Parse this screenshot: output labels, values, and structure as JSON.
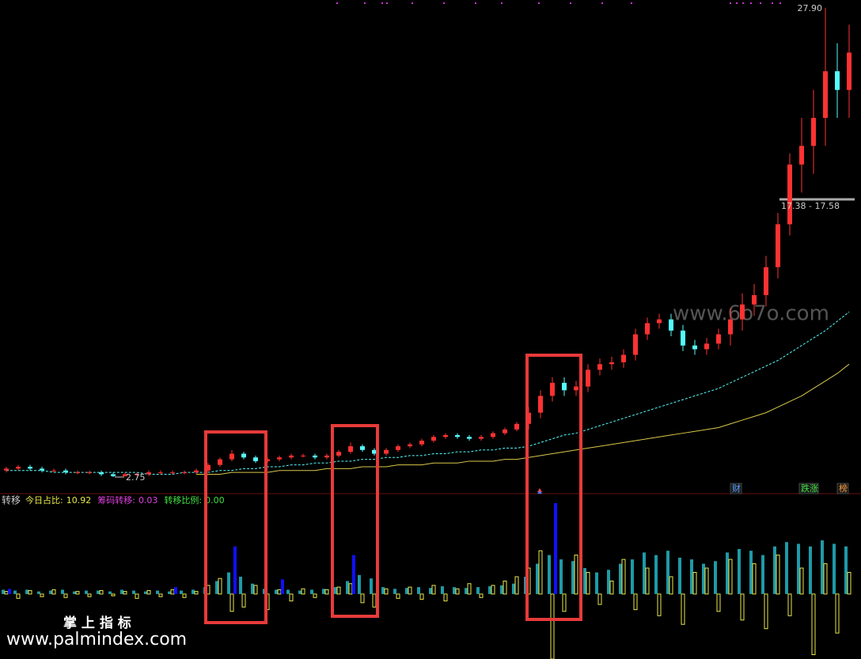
{
  "chart_data": {
    "type": "candlestick",
    "open": [
      3.1,
      3.2,
      3.3,
      3.2,
      3.1,
      3.1,
      3.0,
      3.0,
      3.0,
      2.9,
      2.8,
      2.9,
      2.9,
      3.0,
      3.0,
      3.0,
      3.0,
      3.1,
      3.4,
      3.7,
      4.0,
      3.8,
      3.6,
      3.7,
      3.8,
      3.9,
      3.9,
      3.8,
      3.9,
      4.1,
      4.4,
      4.2,
      4.0,
      4.2,
      4.4,
      4.5,
      4.7,
      4.9,
      5.0,
      4.9,
      4.8,
      4.9,
      5.1,
      5.3,
      5.6,
      6.2,
      7.1,
      7.8,
      7.4,
      7.6,
      8.5,
      8.8,
      8.9,
      9.3,
      10.4,
      11.0,
      11.2,
      10.6,
      9.8,
      9.6,
      9.9,
      10.4,
      11.2,
      12.0,
      12.5,
      14.0,
      16.3,
      19.5,
      20.5,
      22.0,
      24.5,
      23.5
    ],
    "high": [
      3.3,
      3.4,
      3.4,
      3.3,
      3.2,
      3.2,
      3.1,
      3.1,
      3.1,
      3.0,
      3.0,
      3.0,
      3.1,
      3.1,
      3.1,
      3.1,
      3.2,
      3.5,
      3.8,
      4.2,
      4.1,
      3.9,
      3.8,
      3.9,
      4.0,
      4.0,
      4.0,
      4.0,
      4.2,
      4.6,
      4.5,
      4.3,
      4.3,
      4.5,
      4.6,
      4.8,
      5.0,
      5.1,
      5.1,
      5.0,
      5.0,
      5.2,
      5.4,
      5.7,
      6.5,
      7.4,
      8.1,
      8.1,
      7.9,
      8.8,
      9.1,
      9.2,
      9.6,
      10.7,
      11.3,
      11.5,
      11.5,
      10.9,
      10.1,
      10.2,
      10.7,
      11.8,
      12.6,
      13.1,
      14.6,
      16.9,
      20.1,
      22.0,
      23.5,
      27.9,
      26.0,
      27.0
    ],
    "low": [
      3.0,
      3.1,
      3.1,
      3.0,
      3.0,
      2.9,
      2.9,
      2.9,
      2.8,
      2.75,
      2.78,
      2.8,
      2.8,
      2.9,
      2.9,
      2.9,
      2.9,
      3.0,
      3.3,
      3.6,
      3.7,
      3.5,
      3.5,
      3.6,
      3.7,
      3.8,
      3.7,
      3.7,
      3.8,
      4.0,
      4.1,
      3.9,
      3.9,
      4.1,
      4.3,
      4.4,
      4.6,
      4.8,
      4.8,
      4.7,
      4.7,
      4.8,
      5.0,
      5.2,
      5.3,
      5.9,
      6.8,
      7.1,
      7.1,
      7.3,
      8.2,
      8.5,
      8.6,
      9.0,
      10.1,
      10.7,
      10.3,
      9.5,
      9.3,
      9.3,
      9.6,
      9.8,
      10.6,
      11.4,
      11.9,
      13.4,
      15.7,
      18.0,
      19.0,
      20.5,
      22.0,
      22.0
    ],
    "close": [
      3.2,
      3.3,
      3.2,
      3.1,
      3.1,
      3.0,
      3.0,
      3.0,
      2.9,
      2.8,
      2.9,
      2.9,
      3.0,
      3.0,
      3.0,
      3.0,
      3.1,
      3.4,
      3.7,
      4.0,
      3.8,
      3.6,
      3.7,
      3.8,
      3.9,
      3.9,
      3.8,
      3.9,
      4.1,
      4.4,
      4.2,
      4.0,
      4.2,
      4.4,
      4.5,
      4.7,
      4.9,
      5.0,
      4.9,
      4.8,
      4.9,
      5.1,
      5.3,
      5.6,
      6.2,
      7.1,
      7.8,
      7.4,
      7.6,
      8.5,
      8.8,
      8.9,
      9.3,
      10.4,
      11.0,
      11.2,
      10.6,
      9.8,
      9.6,
      9.9,
      10.4,
      11.2,
      12.0,
      12.5,
      14.0,
      16.3,
      19.5,
      20.5,
      22.0,
      24.5,
      23.5,
      25.5
    ],
    "up_color": "#ff3232",
    "down_color": "#54fcfc",
    "ylim": [
      2.41,
      28.32
    ],
    "lines": [
      {
        "color": "#54fcfc",
        "dashed": true,
        "values": [
          3.1,
          3.1,
          3.1,
          3.1,
          3.0,
          3.0,
          3.0,
          3.0,
          3.0,
          3.0,
          3.0,
          3.0,
          2.9,
          2.9,
          2.9,
          3.0,
          3.0,
          3.0,
          3.1,
          3.1,
          3.2,
          3.2,
          3.3,
          3.3,
          3.4,
          3.4,
          3.5,
          3.5,
          3.6,
          3.6,
          3.7,
          3.7,
          3.8,
          3.8,
          3.9,
          3.9,
          4.0,
          4.0,
          4.1,
          4.1,
          4.2,
          4.2,
          4.3,
          4.3,
          4.4,
          4.6,
          4.8,
          5.0,
          5.1,
          5.3,
          5.5,
          5.7,
          5.9,
          6.1,
          6.3,
          6.5,
          6.7,
          6.9,
          7.1,
          7.3,
          7.5,
          7.8,
          8.1,
          8.4,
          8.7,
          9.0,
          9.4,
          9.8,
          10.2,
          10.6,
          11.1,
          11.6
        ]
      },
      {
        "color": "#d8c84a",
        "dashed": false,
        "values": [
          null,
          null,
          null,
          null,
          null,
          null,
          null,
          null,
          null,
          null,
          null,
          null,
          null,
          null,
          null,
          null,
          2.9,
          2.9,
          2.9,
          3.0,
          3.0,
          3.0,
          3.0,
          3.1,
          3.1,
          3.1,
          3.1,
          3.2,
          3.2,
          3.2,
          3.3,
          3.3,
          3.3,
          3.4,
          3.4,
          3.4,
          3.5,
          3.5,
          3.5,
          3.6,
          3.6,
          3.6,
          3.7,
          3.7,
          3.8,
          3.9,
          4.0,
          4.1,
          4.2,
          4.3,
          4.4,
          4.5,
          4.6,
          4.7,
          4.8,
          4.9,
          5.0,
          5.1,
          5.2,
          5.3,
          5.4,
          5.6,
          5.8,
          6.0,
          6.2,
          6.5,
          6.8,
          7.1,
          7.5,
          7.9,
          8.3,
          8.8
        ]
      }
    ],
    "annotations": [
      {
        "text": "27.90",
        "index": 69
      },
      {
        "text": "2.75",
        "index": 9
      },
      {
        "text": "17.38 - 17.58",
        "value": 17.5
      }
    ],
    "markers": [
      "财",
      "跌涨",
      "榜"
    ],
    "indicator": {
      "name": "转移",
      "items": [
        "今日占比:",
        "筹码转移:",
        "转移比例:"
      ],
      "values": [
        10.92,
        0.03,
        0
      ],
      "value_labels": [
        "10.92",
        "0.03",
        "0.00"
      ],
      "colors": [
        "#e8e84a",
        "#e040e0",
        "#40e040"
      ],
      "ylim": [
        -75,
        115
      ],
      "series": [
        {
          "color": "#1e9aa8",
          "values": [
            5,
            4,
            5,
            3,
            4,
            5,
            3,
            4,
            4,
            3,
            5,
            4,
            3,
            4,
            3,
            4,
            5,
            8,
            15,
            25,
            20,
            12,
            6,
            5,
            5,
            4,
            5,
            6,
            8,
            15,
            22,
            18,
            8,
            6,
            7,
            8,
            7,
            9,
            8,
            7,
            8,
            9,
            10,
            12,
            20,
            35,
            45,
            40,
            38,
            30,
            25,
            28,
            35,
            40,
            48,
            45,
            50,
            42,
            40,
            35,
            38,
            48,
            52,
            50,
            45,
            55,
            60,
            58,
            55,
            62,
            58,
            55
          ]
        },
        {
          "color": "#e8e84a",
          "values": [
            3,
            -5,
            4,
            -3,
            5,
            -4,
            3,
            -3,
            4,
            -2,
            3,
            -5,
            4,
            -3,
            5,
            -4,
            3,
            10,
            18,
            -20,
            -15,
            10,
            -18,
            5,
            -8,
            6,
            -4,
            5,
            8,
            12,
            -10,
            -15,
            6,
            -5,
            8,
            -6,
            10,
            -8,
            6,
            12,
            -4,
            10,
            15,
            20,
            30,
            50,
            -75,
            -20,
            45,
            25,
            -12,
            15,
            40,
            -18,
            30,
            -25,
            20,
            -35,
            25,
            30,
            -20,
            40,
            -30,
            35,
            -40,
            45,
            -25,
            30,
            -70,
            35,
            -45,
            25
          ]
        },
        {
          "color": "#1010ff",
          "values": [
            6,
            0,
            0,
            0,
            0,
            0,
            0,
            0,
            0,
            0,
            0,
            0,
            0,
            0,
            8,
            0,
            0,
            0,
            0,
            55,
            0,
            0,
            0,
            17,
            0,
            0,
            0,
            0,
            0,
            45,
            0,
            0,
            0,
            0,
            0,
            0,
            0,
            0,
            0,
            0,
            0,
            0,
            0,
            0,
            0,
            0,
            105,
            0,
            0,
            0,
            0,
            0,
            0,
            0,
            0,
            0,
            0,
            0,
            0,
            0,
            0,
            0,
            0,
            0,
            0,
            0,
            0,
            0,
            0,
            0,
            0,
            0
          ]
        }
      ]
    },
    "watermarks": [
      "www.6o7o.com",
      "掌 上 指 标",
      "www.palmindex.com"
    ]
  }
}
